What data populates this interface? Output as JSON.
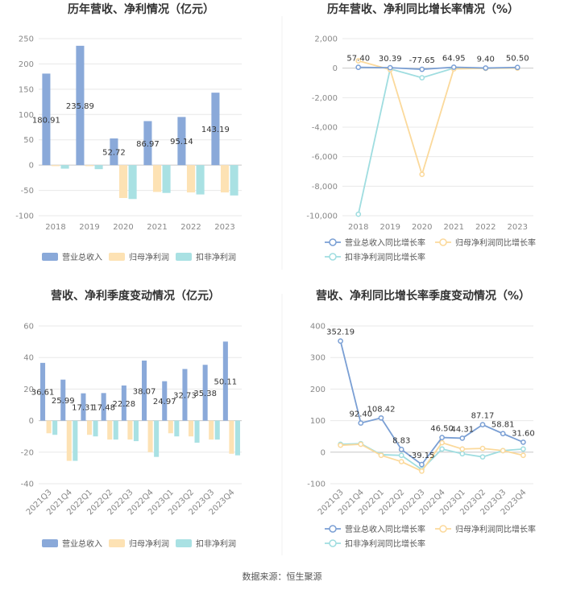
{
  "source": "数据来源：恒生聚源",
  "colors": {
    "revenue": "#8aa9d9",
    "net": "#fde2b4",
    "deducted": "#a9e1e3",
    "revenue_line": "#7a9fd4",
    "net_line": "#fbd99b",
    "deducted_line": "#9fdde0",
    "grid": "#e8e8e8",
    "axis": "#cccccc"
  },
  "chart_data": [
    {
      "id": "annual",
      "type": "bar",
      "title": "历年营收、净利情况（亿元）",
      "categories": [
        "2018",
        "2019",
        "2020",
        "2021",
        "2022",
        "2023"
      ],
      "yticks": [
        250,
        200,
        150,
        100,
        50,
        0,
        -50,
        -100
      ],
      "ylim": [
        -100,
        250
      ],
      "series": [
        {
          "name": "营业总收入",
          "color_key": "revenue",
          "values": [
            180.91,
            235.89,
            52.72,
            86.97,
            95.14,
            143.19
          ],
          "labels": [
            "180.91",
            "235.89",
            "52.72",
            "86.97",
            "95.14",
            "143.19"
          ]
        },
        {
          "name": "归母净利润",
          "color_key": "net",
          "values": [
            -2,
            -2,
            -65,
            -53,
            -54,
            -54
          ]
        },
        {
          "name": "扣非净利润",
          "color_key": "deducted",
          "values": [
            -7,
            -8,
            -67,
            -55,
            -58,
            -60
          ]
        }
      ]
    },
    {
      "id": "annual_growth",
      "type": "line",
      "title": "历年营收、净利同比增长率情况（%）",
      "categories": [
        "2018",
        "2019",
        "2020",
        "2021",
        "2022",
        "2023"
      ],
      "yticks": [
        "2,000",
        "0",
        "-2,000",
        "-4,000",
        "-6,000",
        "-8,000",
        "-10,000"
      ],
      "ytick_values": [
        2000,
        0,
        -2000,
        -4000,
        -6000,
        -8000,
        -10000
      ],
      "ylim": [
        -10000,
        2000
      ],
      "series": [
        {
          "name": "营业总收入同比增长率",
          "color_key": "revenue_line",
          "values": [
            57.4,
            30.39,
            -77.65,
            64.95,
            9.4,
            50.5
          ],
          "labels": [
            "57.40",
            "30.39",
            "-77.65",
            "64.95",
            "9.40",
            "50.50"
          ]
        },
        {
          "name": "归母净利润同比增长率",
          "color_key": "net_line",
          "values": [
            500,
            -100,
            -7200,
            -50,
            -10,
            5
          ]
        },
        {
          "name": "扣非净利润同比增长率",
          "color_key": "deducted_line",
          "values": [
            -9900,
            -50,
            -650,
            0,
            -10,
            20
          ]
        }
      ]
    },
    {
      "id": "quarterly",
      "type": "bar",
      "title": "营收、净利季度变动情况（亿元）",
      "categories": [
        "2021Q3",
        "2021Q4",
        "2022Q1",
        "2022Q2",
        "2022Q3",
        "2022Q4",
        "2023Q1",
        "2023Q2",
        "2023Q3",
        "2023Q4"
      ],
      "yticks": [
        60,
        40,
        20,
        0,
        -20,
        -40
      ],
      "ylim": [
        -40,
        60
      ],
      "series": [
        {
          "name": "营业总收入",
          "color_key": "revenue",
          "values": [
            36.61,
            25.99,
            17.31,
            17.48,
            22.28,
            38.07,
            24.97,
            32.73,
            35.38,
            50.11
          ],
          "labels": [
            "36.61",
            "25.99",
            "17.31",
            "17.48",
            "22.28",
            "38.07",
            "24.97",
            "32.73",
            "35.38",
            "50.11"
          ]
        },
        {
          "name": "归母净利润",
          "color_key": "net",
          "values": [
            -8,
            -25.5,
            -9,
            -12,
            -12,
            -20,
            -8,
            -10,
            -12,
            -21
          ]
        },
        {
          "name": "扣非净利润",
          "color_key": "deducted",
          "values": [
            -9,
            -25.5,
            -10,
            -12,
            -13,
            -23,
            -10,
            -14,
            -12,
            -22
          ]
        }
      ]
    },
    {
      "id": "quarterly_growth",
      "type": "line",
      "title": "营收、净利同比增长率季度变动情况（%）",
      "categories": [
        "2021Q3",
        "2021Q4",
        "2022Q1",
        "2022Q2",
        "2022Q3",
        "2022Q4",
        "2023Q1",
        "2023Q2",
        "2023Q3",
        "2023Q4"
      ],
      "yticks": [
        "400",
        "300",
        "200",
        "100",
        "0",
        "-100"
      ],
      "ytick_values": [
        400,
        300,
        200,
        100,
        0,
        -100
      ],
      "ylim": [
        -100,
        400
      ],
      "series": [
        {
          "name": "营业总收入同比增长率",
          "color_key": "revenue_line",
          "values": [
            352.19,
            92.4,
            108.42,
            8.83,
            -39.15,
            46.5,
            44.31,
            87.17,
            58.81,
            31.6
          ],
          "labels": [
            "352.19",
            "92.40",
            "108.42",
            "8.83",
            "-39.15",
            "46.50",
            "44.31",
            "87.17",
            "58.81",
            "31.60"
          ]
        },
        {
          "name": "归母净利润同比增长率",
          "color_key": "net_line",
          "values": [
            22,
            25,
            -10,
            -30,
            -60,
            30,
            10,
            12,
            5,
            -10
          ]
        },
        {
          "name": "扣非净利润同比增长率",
          "color_key": "deducted_line",
          "values": [
            25,
            27,
            -8,
            -10,
            -55,
            10,
            -5,
            -15,
            5,
            10
          ]
        }
      ]
    }
  ]
}
